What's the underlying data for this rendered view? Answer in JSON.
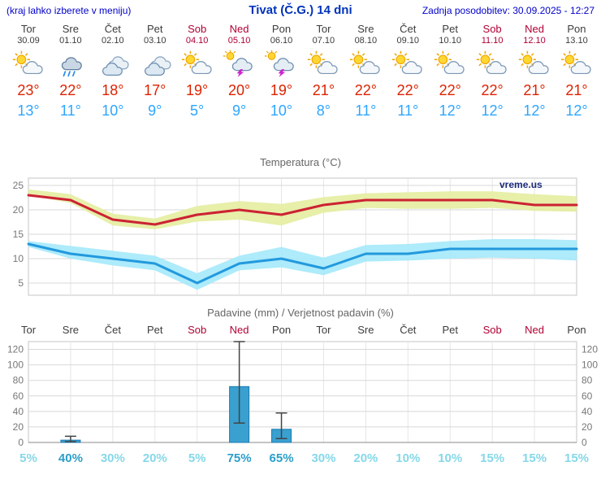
{
  "header": {
    "left_note": "(kraj lahko izberete v meniju)",
    "title": "Tivat (Č.G.) 14 dni",
    "updated": "Zadnja posodobitev: 30.09.2025 - 12:27"
  },
  "colors": {
    "tmax": "#dd2200",
    "tmin": "#2da6ff",
    "weekday": "#3c3c3c",
    "weekend": "#b00033",
    "max_line": "#cc2233",
    "max_band": "#e4eda0",
    "min_line": "#2299dd",
    "min_band": "#a5e9fb",
    "bar_fill": "#3aa0d0",
    "bar_stroke": "#1a7ab0",
    "whisker": "#444444",
    "pop_strong": "#2b9ec9",
    "pop_light": "#85d8e8",
    "watermark": "#1b2a7a"
  },
  "forecast": {
    "days": [
      {
        "name": "Tor",
        "date": "30.09",
        "icon": "partly",
        "tmax": "23°",
        "tmin": "13°",
        "weekend": false
      },
      {
        "name": "Sre",
        "date": "01.10",
        "icon": "rain",
        "tmax": "22°",
        "tmin": "11°",
        "weekend": false
      },
      {
        "name": "Čet",
        "date": "02.10",
        "icon": "cloudy",
        "tmax": "18°",
        "tmin": "10°",
        "weekend": false
      },
      {
        "name": "Pet",
        "date": "03.10",
        "icon": "cloudy",
        "tmax": "17°",
        "tmin": "9°",
        "weekend": false
      },
      {
        "name": "Sob",
        "date": "04.10",
        "icon": "partly",
        "tmax": "19°",
        "tmin": "5°",
        "weekend": true
      },
      {
        "name": "Ned",
        "date": "05.10",
        "icon": "thunder",
        "tmax": "20°",
        "tmin": "9°",
        "weekend": true
      },
      {
        "name": "Pon",
        "date": "06.10",
        "icon": "thunder",
        "tmax": "19°",
        "tmin": "10°",
        "weekend": false
      },
      {
        "name": "Tor",
        "date": "07.10",
        "icon": "partly",
        "tmax": "21°",
        "tmin": "8°",
        "weekend": false
      },
      {
        "name": "Sre",
        "date": "08.10",
        "icon": "partly",
        "tmax": "22°",
        "tmin": "11°",
        "weekend": false
      },
      {
        "name": "Čet",
        "date": "09.10",
        "icon": "partly",
        "tmax": "22°",
        "tmin": "11°",
        "weekend": false
      },
      {
        "name": "Pet",
        "date": "10.10",
        "icon": "partly",
        "tmax": "22°",
        "tmin": "12°",
        "weekend": false
      },
      {
        "name": "Sob",
        "date": "11.10",
        "icon": "partly",
        "tmax": "22°",
        "tmin": "12°",
        "weekend": true
      },
      {
        "name": "Ned",
        "date": "12.10",
        "icon": "partly",
        "tmax": "21°",
        "tmin": "12°",
        "weekend": true
      },
      {
        "name": "Pon",
        "date": "13.10",
        "icon": "partly",
        "tmax": "21°",
        "tmin": "12°",
        "weekend": false
      }
    ]
  },
  "chart_data": [
    {
      "type": "line",
      "title": "Temperatura (°C)",
      "watermark": "vreme.us",
      "x_count": 14,
      "x_categories": [
        "Tor",
        "Sre",
        "Čet",
        "Pet",
        "Sob",
        "Ned",
        "Pon",
        "Tor",
        "Sre",
        "Čet",
        "Pet",
        "Sob",
        "Ned",
        "Pon"
      ],
      "ylim": [
        2.5,
        26.5
      ],
      "yticks": [
        5,
        10,
        15,
        20,
        25
      ],
      "grid": true,
      "series": [
        {
          "name": "max-temperature",
          "values": [
            23,
            22,
            18,
            17,
            19,
            20,
            19,
            21,
            22,
            22,
            22,
            22,
            21,
            21
          ],
          "upper": [
            24.2,
            23.2,
            19.2,
            18.2,
            20.8,
            21.8,
            21.2,
            22.6,
            23.4,
            23.6,
            23.8,
            23.8,
            23.2,
            22.8
          ],
          "lower": [
            23.0,
            21.4,
            16.8,
            16.0,
            17.6,
            18.0,
            16.8,
            19.4,
            20.4,
            20.2,
            20.2,
            20.4,
            19.8,
            19.6
          ],
          "line_color": "#cc2233",
          "band_color": "#e4eda0"
        },
        {
          "name": "min-temperature",
          "values": [
            13,
            11,
            10,
            9,
            5,
            9,
            10,
            8,
            11,
            11,
            12,
            12,
            12,
            12
          ],
          "upper": [
            13.6,
            12.6,
            11.6,
            10.6,
            7.0,
            10.6,
            12.4,
            10.2,
            12.8,
            13.0,
            13.6,
            14.0,
            14.0,
            13.8
          ],
          "lower": [
            12.4,
            10.0,
            8.6,
            7.6,
            3.6,
            7.6,
            8.2,
            6.6,
            9.4,
            9.6,
            10.0,
            10.2,
            10.0,
            9.6
          ],
          "line_color": "#2299dd",
          "band_color": "#a5e9fb"
        }
      ]
    },
    {
      "type": "bar",
      "title": "Padavine (mm) / Verjetnost padavin (%)",
      "categories": [
        "Tor",
        "Sre",
        "Čet",
        "Pet",
        "Sob",
        "Ned",
        "Pon",
        "Tor",
        "Sre",
        "Čet",
        "Pet",
        "Sob",
        "Ned",
        "Pon"
      ],
      "weekend": [
        false,
        false,
        false,
        false,
        true,
        true,
        false,
        false,
        false,
        false,
        false,
        true,
        true,
        false
      ],
      "values": [
        0,
        3,
        0,
        0,
        0,
        72,
        17,
        0,
        0,
        0,
        0,
        0,
        0,
        0
      ],
      "whisker_low": [
        0,
        1,
        0,
        0,
        0,
        25,
        5,
        0,
        0,
        0,
        0,
        0,
        0,
        0
      ],
      "whisker_high": [
        0,
        8,
        0,
        0,
        0,
        130,
        38,
        0,
        0,
        0,
        0,
        0,
        0,
        0
      ],
      "pop_percent": [
        "5%",
        "40%",
        "30%",
        "20%",
        "5%",
        "75%",
        "65%",
        "30%",
        "20%",
        "10%",
        "10%",
        "15%",
        "15%",
        "15%"
      ],
      "pop_strong": [
        false,
        true,
        false,
        false,
        false,
        true,
        true,
        false,
        false,
        false,
        false,
        false,
        false,
        false
      ],
      "ylim": [
        0,
        130
      ],
      "yticks": [
        0,
        20,
        40,
        60,
        80,
        100,
        120
      ],
      "grid": true,
      "legend": "none"
    }
  ]
}
